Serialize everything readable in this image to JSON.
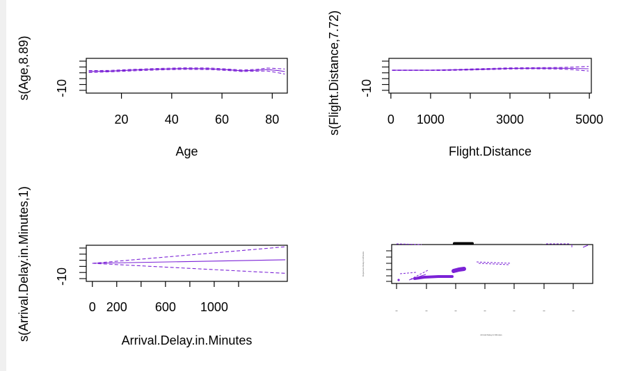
{
  "colors": {
    "curve": "#7b22d6",
    "axis": "#000000",
    "background": "#ffffff",
    "strip": "#f0f0f0"
  },
  "chart_data": [
    {
      "id": "age",
      "type": "line",
      "title": "",
      "xlabel": "Age",
      "ylabel": "s(Age,8.89)",
      "xlim": [
        6,
        86
      ],
      "ylim": [
        -13,
        6
      ],
      "x_ticks": [
        20,
        40,
        60,
        80
      ],
      "y_ticks": [
        -10
      ],
      "y_minor_count": 6,
      "series": [
        {
          "role": "fit",
          "x": [
            7,
            15,
            25,
            35,
            45,
            55,
            62,
            68,
            74,
            78,
            82,
            85
          ],
          "values": [
            -1.2,
            -1.0,
            -0.4,
            0.1,
            0.4,
            0.3,
            -0.2,
            -0.8,
            -0.5,
            -0.1,
            -0.6,
            -1.2
          ]
        },
        {
          "role": "upper",
          "x": [
            7,
            15,
            25,
            35,
            45,
            55,
            62,
            68,
            74,
            78,
            82,
            85
          ],
          "values": [
            -0.7,
            -0.6,
            0.0,
            0.5,
            0.8,
            0.7,
            0.2,
            -0.4,
            0.0,
            0.7,
            0.4,
            0.2
          ]
        },
        {
          "role": "lower",
          "x": [
            7,
            15,
            25,
            35,
            45,
            55,
            62,
            68,
            74,
            78,
            82,
            85
          ],
          "values": [
            -1.7,
            -1.4,
            -0.8,
            -0.3,
            0.0,
            -0.1,
            -0.6,
            -1.2,
            -1.0,
            -0.9,
            -1.8,
            -2.6
          ]
        }
      ]
    },
    {
      "id": "flight",
      "type": "line",
      "title": "",
      "xlabel": "Flight.Distance",
      "ylabel": "s(Flight.Distance,7.72)",
      "xlim": [
        -50,
        5050
      ],
      "ylim": [
        -13,
        6
      ],
      "x_ticks": [
        0,
        1000,
        3000,
        5000
      ],
      "x_minor_ticks": [
        2000,
        4000
      ],
      "y_ticks": [
        -10
      ],
      "y_minor_count": 6,
      "series": [
        {
          "role": "fit",
          "x": [
            30,
            500,
            1000,
            1400,
            2000,
            2500,
            3000,
            3600,
            4200,
            4600,
            4980
          ],
          "values": [
            -0.5,
            -0.5,
            -0.5,
            -0.4,
            -0.1,
            0.2,
            0.5,
            0.6,
            0.6,
            0.5,
            0.3
          ]
        },
        {
          "role": "upper",
          "x": [
            30,
            500,
            1000,
            1400,
            2000,
            2500,
            3000,
            3600,
            4200,
            4600,
            4980
          ],
          "values": [
            -0.4,
            -0.4,
            -0.4,
            -0.2,
            0.2,
            0.5,
            0.8,
            0.9,
            1.0,
            1.2,
            1.6
          ]
        },
        {
          "role": "lower",
          "x": [
            30,
            500,
            1000,
            1400,
            2000,
            2500,
            3000,
            3600,
            4200,
            4600,
            4980
          ],
          "values": [
            -0.6,
            -0.6,
            -0.6,
            -0.6,
            -0.4,
            -0.1,
            0.2,
            0.3,
            0.2,
            -0.2,
            -0.9
          ]
        }
      ]
    },
    {
      "id": "arrival",
      "type": "line",
      "title": "",
      "xlabel": "Arrival.Delay.in.Minutes",
      "ylabel": "s(Arrival.Delay.in.Minutes,1)",
      "xlim": [
        -50,
        1600
      ],
      "ylim": [
        -18,
        18
      ],
      "x_ticks": [
        0,
        200,
        600,
        1000
      ],
      "x_minor_ticks": [
        400,
        800,
        1200
      ],
      "y_ticks": [
        -10
      ],
      "y_minor_count": 6,
      "series": [
        {
          "role": "fit",
          "x": [
            0,
            1584
          ],
          "values": [
            0,
            3.5
          ]
        },
        {
          "role": "upper",
          "x": [
            0,
            1584
          ],
          "values": [
            0,
            16.5
          ]
        },
        {
          "role": "lower",
          "x": [
            0,
            1584
          ],
          "values": [
            0,
            -10
          ]
        }
      ]
    },
    {
      "id": "departure",
      "type": "scatter",
      "title": "",
      "xlabel": "Arrival.Delay.in.Minutes",
      "ylabel": "Departure.Delay.in.Minutes",
      "x_tick_count": 7,
      "y_tick_count": 6
    }
  ]
}
